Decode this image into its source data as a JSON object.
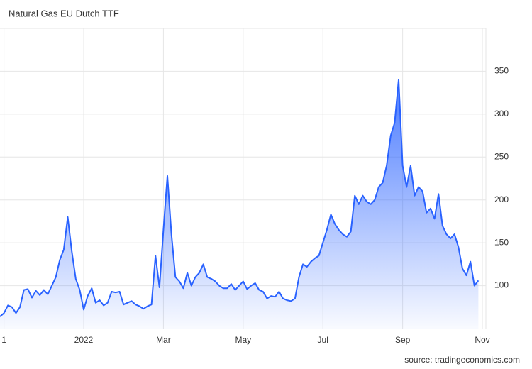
{
  "chart_data": {
    "type": "area",
    "title": "Natural Gas EU Dutch TTF",
    "source": "source: tradingeconomics.com",
    "categories": [
      null,
      "1",
      null,
      null,
      null,
      null,
      null,
      null,
      null,
      null,
      null,
      null,
      null,
      null,
      null,
      null,
      null,
      null,
      null,
      null,
      null,
      "2022",
      null,
      null,
      null,
      null,
      null,
      null,
      null,
      null,
      null,
      null,
      null,
      null,
      null,
      null,
      null,
      null,
      null,
      null,
      null,
      "Mar",
      null,
      null,
      null,
      null,
      null,
      null,
      null,
      null,
      null,
      null,
      null,
      null,
      null,
      null,
      null,
      null,
      null,
      null,
      null,
      "May",
      null,
      null,
      null,
      null,
      null,
      null,
      null,
      null,
      null,
      null,
      null,
      null,
      null,
      null,
      null,
      null,
      null,
      null,
      null,
      "Jul",
      null,
      null,
      null,
      null,
      null,
      null,
      null,
      null,
      null,
      null,
      null,
      null,
      null,
      null,
      null,
      null,
      null,
      null,
      null,
      "Sep",
      null,
      null,
      null,
      null,
      null,
      null,
      null,
      null,
      null,
      null,
      null,
      null,
      null,
      null,
      null,
      null,
      null,
      null,
      null,
      "Nov"
    ],
    "values": [
      64,
      68,
      77,
      75,
      68,
      75,
      95,
      96,
      86,
      94,
      89,
      95,
      90,
      100,
      110,
      130,
      142,
      180,
      140,
      108,
      95,
      72,
      88,
      97,
      80,
      83,
      77,
      80,
      93,
      92,
      93,
      78,
      80,
      82,
      78,
      76,
      73,
      76,
      78,
      135,
      98,
      165,
      228,
      160,
      110,
      105,
      97,
      115,
      100,
      110,
      115,
      125,
      110,
      108,
      105,
      100,
      97,
      97,
      102,
      95,
      100,
      105,
      96,
      100,
      103,
      95,
      93,
      85,
      88,
      87,
      93,
      85,
      83,
      82,
      85,
      110,
      125,
      122,
      128,
      132,
      135,
      150,
      165,
      183,
      172,
      165,
      160,
      157,
      163,
      205,
      195,
      205,
      198,
      195,
      200,
      215,
      220,
      240,
      275,
      290,
      340,
      240,
      215,
      240,
      205,
      215,
      210,
      185,
      190,
      178,
      207,
      170,
      160,
      155,
      160,
      145,
      120,
      112,
      128,
      100,
      106,
      null
    ],
    "color": "#2962ff",
    "ylim": [
      50,
      400
    ],
    "yticks": [
      100,
      150,
      200,
      250,
      300,
      350
    ],
    "grid": true
  }
}
